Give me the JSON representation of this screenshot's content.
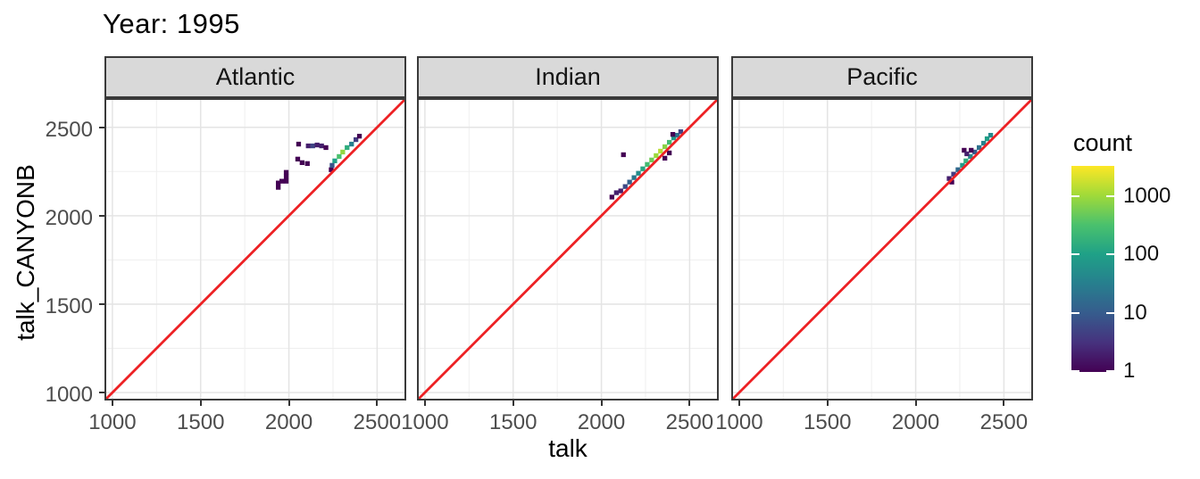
{
  "chart_data": {
    "type": "heatmap",
    "subtype": "bin2d",
    "title": "Year: 1995",
    "xlabel": "talk",
    "ylabel": "talk_CANYONB",
    "x_ticks": [
      1000,
      1500,
      2000,
      2500
    ],
    "y_ticks": [
      1000,
      1500,
      2000,
      2500
    ],
    "minor_ticks": [
      1250,
      1750,
      2250
    ],
    "xlim": [
      955,
      2665
    ],
    "ylim": [
      955,
      2665
    ],
    "grid": true,
    "bin_size": 25,
    "reference_line": {
      "type": "identity",
      "equation": "y = x",
      "color": "#ed2124"
    },
    "legend": {
      "title": "count",
      "position": "right",
      "scale": "log10",
      "tick_values": [
        1000,
        100,
        10,
        1
      ],
      "tick_labels": [
        "1000",
        "100",
        "10",
        "1"
      ],
      "domain": [
        1,
        3000
      ],
      "palette": "viridis",
      "colors": [
        "#440154",
        "#46327e",
        "#365c8d",
        "#277f8e",
        "#1fa187",
        "#4ac16d",
        "#a0da39",
        "#fde725"
      ]
    },
    "facets": [
      {
        "label": "Atlantic",
        "bins": [
          [
            2055,
            2405,
            1
          ],
          [
            2110,
            2395,
            2
          ],
          [
            2135,
            2395,
            5
          ],
          [
            2160,
            2400,
            2
          ],
          [
            2185,
            2395,
            2
          ],
          [
            2210,
            2385,
            1
          ],
          [
            2050,
            2320,
            1
          ],
          [
            2075,
            2300,
            1
          ],
          [
            2105,
            2295,
            1
          ],
          [
            1985,
            2245,
            1
          ],
          [
            1985,
            2220,
            1
          ],
          [
            1985,
            2195,
            1
          ],
          [
            1960,
            2195,
            1
          ],
          [
            1940,
            2185,
            1
          ],
          [
            1940,
            2160,
            1
          ],
          [
            2240,
            2260,
            1
          ],
          [
            2245,
            2285,
            8
          ],
          [
            2260,
            2310,
            90
          ],
          [
            2285,
            2335,
            300
          ],
          [
            2305,
            2360,
            800
          ],
          [
            2330,
            2385,
            150
          ],
          [
            2355,
            2405,
            30
          ],
          [
            2380,
            2430,
            4
          ],
          [
            2400,
            2450,
            1
          ]
        ]
      },
      {
        "label": "Indian",
        "bins": [
          [
            2060,
            2105,
            1
          ],
          [
            2085,
            2130,
            2
          ],
          [
            2110,
            2140,
            2
          ],
          [
            2135,
            2165,
            6
          ],
          [
            2160,
            2190,
            12
          ],
          [
            2185,
            2215,
            25
          ],
          [
            2210,
            2240,
            50
          ],
          [
            2235,
            2265,
            120
          ],
          [
            2260,
            2290,
            250
          ],
          [
            2285,
            2315,
            500
          ],
          [
            2310,
            2340,
            900
          ],
          [
            2335,
            2365,
            1300
          ],
          [
            2360,
            2390,
            700
          ],
          [
            2385,
            2415,
            250
          ],
          [
            2410,
            2440,
            80
          ],
          [
            2430,
            2455,
            20
          ],
          [
            2450,
            2475,
            5
          ],
          [
            2125,
            2345,
            1
          ],
          [
            2360,
            2325,
            1
          ],
          [
            2385,
            2355,
            1
          ],
          [
            2405,
            2460,
            1
          ]
        ]
      },
      {
        "label": "Pacific",
        "bins": [
          [
            2205,
            2190,
            1
          ],
          [
            2190,
            2210,
            2
          ],
          [
            2215,
            2235,
            4
          ],
          [
            2240,
            2260,
            15
          ],
          [
            2265,
            2285,
            80
          ],
          [
            2285,
            2310,
            150
          ],
          [
            2310,
            2335,
            40
          ],
          [
            2335,
            2360,
            10
          ],
          [
            2360,
            2385,
            20
          ],
          [
            2385,
            2410,
            35
          ],
          [
            2405,
            2435,
            90
          ],
          [
            2425,
            2455,
            45
          ],
          [
            2275,
            2370,
            1
          ],
          [
            2315,
            2370,
            1
          ],
          [
            2290,
            2350,
            2
          ]
        ]
      }
    ]
  },
  "colors": {
    "strip_background": "#d9d9d9",
    "panel_border": "#3a3a3a",
    "grid_major": "#e4e4e4",
    "grid_minor": "#efefef",
    "axis_text": "#4d4d4d",
    "reference_line": "#ed2124"
  }
}
